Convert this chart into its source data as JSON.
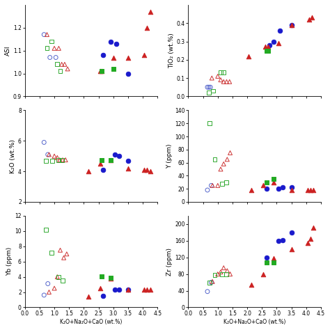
{
  "xlabel": "K₂O+Na₂O+CaO (wt.%)",
  "panels": [
    {
      "key": "ASI",
      "ylabel": "ASI",
      "ylim": [
        0.9,
        1.3
      ],
      "yticks": [
        0.9,
        1.0,
        1.1,
        1.2
      ],
      "xlim": [
        0.0,
        4.5
      ],
      "xticks": [
        0.0,
        0.5,
        1.0,
        1.5,
        2.0,
        2.5,
        3.0,
        3.5,
        4.0,
        4.5
      ]
    },
    {
      "key": "TiO2",
      "ylabel": "TiO₂ (wt.%)",
      "ylim": [
        0.0,
        0.5
      ],
      "yticks": [
        0.0,
        0.1,
        0.2,
        0.3,
        0.4
      ],
      "xlim": [
        0.0,
        4.5
      ],
      "xticks": [
        0.0,
        0.5,
        1.0,
        1.5,
        2.0,
        2.5,
        3.0,
        3.5,
        4.0,
        4.5
      ]
    },
    {
      "key": "K2O",
      "ylabel": "K₂O (wt.%)",
      "ylim": [
        2.0,
        8.0
      ],
      "yticks": [
        2,
        4,
        6,
        8
      ],
      "xlim": [
        0.0,
        4.5
      ],
      "xticks": [
        0.0,
        0.5,
        1.0,
        1.5,
        2.0,
        2.5,
        3.0,
        3.5,
        4.0,
        4.5
      ]
    },
    {
      "key": "Y",
      "ylabel": "Y (ppm)",
      "ylim": [
        0,
        140
      ],
      "yticks": [
        0,
        20,
        40,
        60,
        80,
        100,
        120,
        140
      ],
      "xlim": [
        0.0,
        4.5
      ],
      "xticks": [
        0.0,
        0.5,
        1.0,
        1.5,
        2.0,
        2.5,
        3.0,
        3.5,
        4.0,
        4.5
      ]
    },
    {
      "key": "Yb",
      "ylabel": "Yb (ppm)",
      "ylim": [
        0,
        12
      ],
      "yticks": [
        0,
        2,
        4,
        6,
        8,
        10,
        12
      ],
      "xlim": [
        0.0,
        4.5
      ],
      "xticks": [
        0.0,
        0.5,
        1.0,
        1.5,
        2.0,
        2.5,
        3.0,
        3.5,
        4.0,
        4.5
      ]
    },
    {
      "key": "Zr",
      "ylabel": "Zr (ppm)",
      "ylim": [
        0,
        220
      ],
      "yticks": [
        0,
        40,
        80,
        120,
        160,
        200
      ],
      "xlim": [
        0.0,
        4.5
      ],
      "xticks": [
        0.0,
        0.5,
        1.0,
        1.5,
        2.0,
        2.5,
        3.0,
        3.5,
        4.0,
        4.5
      ]
    }
  ],
  "data": {
    "ASI": {
      "open_circle": {
        "x": [
          0.65,
          0.85,
          1.05
        ],
        "y": [
          1.17,
          1.07,
          1.07
        ]
      },
      "open_triangle": {
        "x": [
          0.75,
          1.0,
          1.15,
          1.25,
          1.35,
          1.45
        ],
        "y": [
          1.17,
          1.11,
          1.11,
          1.04,
          1.04,
          1.02
        ]
      },
      "open_square": {
        "x": [
          0.75,
          0.9,
          1.1,
          1.2
        ],
        "y": [
          1.11,
          1.14,
          1.04,
          1.01
        ]
      },
      "filled_circle": {
        "x": [
          2.65,
          2.9,
          3.1,
          3.5
        ],
        "y": [
          1.08,
          1.14,
          1.13,
          1.0
        ]
      },
      "filled_triangle": {
        "x": [
          2.55,
          2.6,
          3.0,
          3.5,
          4.05,
          4.15,
          4.25
        ],
        "y": [
          1.01,
          1.01,
          1.07,
          1.07,
          1.08,
          1.2,
          1.27
        ]
      },
      "filled_square": {
        "x": [
          2.6,
          3.0
        ],
        "y": [
          1.01,
          1.02
        ]
      }
    },
    "TiO2": {
      "open_circle": {
        "x": [
          0.65,
          0.7,
          0.75
        ],
        "y": [
          0.05,
          0.05,
          0.05
        ]
      },
      "open_triangle": {
        "x": [
          0.8,
          1.0,
          1.1,
          1.2,
          1.3,
          1.4
        ],
        "y": [
          0.1,
          0.11,
          0.09,
          0.08,
          0.08,
          0.08
        ]
      },
      "open_square": {
        "x": [
          0.7,
          0.85,
          1.1,
          1.2
        ],
        "y": [
          0.02,
          0.03,
          0.13,
          0.13
        ]
      },
      "filled_circle": {
        "x": [
          2.75,
          2.9,
          3.1,
          3.5
        ],
        "y": [
          0.28,
          0.3,
          0.36,
          0.39
        ]
      },
      "filled_triangle": {
        "x": [
          2.05,
          2.6,
          2.7,
          3.05,
          3.5,
          4.1,
          4.2
        ],
        "y": [
          0.22,
          0.27,
          0.27,
          0.29,
          0.39,
          0.42,
          0.43
        ]
      },
      "filled_square": {
        "x": [
          2.65,
          2.7
        ],
        "y": [
          0.25,
          0.25
        ]
      }
    },
    "K2O": {
      "open_circle": {
        "x": [
          0.65,
          0.78
        ],
        "y": [
          5.9,
          5.1
        ]
      },
      "open_triangle": {
        "x": [
          0.82,
          1.0,
          1.1,
          1.18,
          1.28,
          1.38
        ],
        "y": [
          5.1,
          5.0,
          4.9,
          4.75,
          4.75,
          4.75
        ]
      },
      "open_square": {
        "x": [
          0.72,
          0.92,
          1.15,
          1.25
        ],
        "y": [
          4.7,
          4.7,
          4.75,
          4.75
        ]
      },
      "filled_circle": {
        "x": [
          2.65,
          3.05,
          3.2,
          3.5
        ],
        "y": [
          4.1,
          5.1,
          5.0,
          4.7
        ]
      },
      "filled_triangle": {
        "x": [
          2.15,
          2.55,
          2.9,
          3.5,
          4.05,
          4.15,
          4.25
        ],
        "y": [
          4.0,
          4.5,
          4.75,
          4.2,
          4.1,
          4.1,
          4.0
        ]
      },
      "filled_square": {
        "x": [
          2.6,
          2.9
        ],
        "y": [
          4.75,
          4.75
        ]
      }
    },
    "Y": {
      "open_circle": {
        "x": [
          0.65,
          0.78
        ],
        "y": [
          18,
          25
        ]
      },
      "open_triangle": {
        "x": [
          0.82,
          1.0,
          1.1,
          1.2,
          1.32,
          1.42
        ],
        "y": [
          25,
          25,
          50,
          58,
          65,
          75
        ]
      },
      "open_square": {
        "x": [
          0.72,
          0.9,
          1.15,
          1.28
        ],
        "y": [
          120,
          65,
          28,
          30
        ]
      },
      "filled_circle": {
        "x": [
          2.65,
          3.05,
          3.2,
          3.5
        ],
        "y": [
          20,
          20,
          22,
          22
        ]
      },
      "filled_triangle": {
        "x": [
          2.15,
          2.55,
          2.9,
          3.5,
          4.05,
          4.15,
          4.25
        ],
        "y": [
          18,
          25,
          30,
          18,
          18,
          18,
          18
        ]
      },
      "filled_square": {
        "x": [
          2.65,
          2.9
        ],
        "y": [
          30,
          35
        ]
      }
    },
    "Yb": {
      "open_circle": {
        "x": [
          0.65,
          0.78
        ],
        "y": [
          1.6,
          3.1
        ]
      },
      "open_triangle": {
        "x": [
          0.82,
          1.0,
          1.1,
          1.2,
          1.32,
          1.42
        ],
        "y": [
          2.0,
          2.5,
          4.0,
          7.5,
          6.5,
          7.0
        ]
      },
      "open_square": {
        "x": [
          0.72,
          0.9,
          1.15,
          1.28
        ],
        "y": [
          10.2,
          7.2,
          4.0,
          3.5
        ]
      },
      "filled_circle": {
        "x": [
          2.65,
          3.05,
          3.2,
          3.5
        ],
        "y": [
          1.5,
          2.3,
          2.3,
          2.3
        ]
      },
      "filled_triangle": {
        "x": [
          2.15,
          2.55,
          2.9,
          3.5,
          4.05,
          4.15,
          4.25
        ],
        "y": [
          1.4,
          2.5,
          3.8,
          2.3,
          2.3,
          2.3,
          2.3
        ]
      },
      "filled_square": {
        "x": [
          2.6,
          2.9
        ],
        "y": [
          4.1,
          3.9
        ]
      }
    },
    "Zr": {
      "open_circle": {
        "x": [
          0.65,
          0.78
        ],
        "y": [
          38,
          60
        ]
      },
      "open_triangle": {
        "x": [
          0.82,
          1.0,
          1.1,
          1.2,
          1.32,
          1.42
        ],
        "y": [
          62,
          80,
          85,
          95,
          88,
          80
        ]
      },
      "open_square": {
        "x": [
          0.72,
          0.9,
          1.15,
          1.28
        ],
        "y": [
          60,
          78,
          80,
          80
        ]
      },
      "filled_circle": {
        "x": [
          2.65,
          3.05,
          3.2,
          3.5
        ],
        "y": [
          120,
          160,
          162,
          180
        ]
      },
      "filled_triangle": {
        "x": [
          2.15,
          2.55,
          2.9,
          3.5,
          4.05,
          4.15,
          4.25
        ],
        "y": [
          55,
          80,
          118,
          140,
          155,
          165,
          192
        ]
      },
      "filled_square": {
        "x": [
          2.65,
          2.9
        ],
        "y": [
          108,
          108
        ]
      }
    }
  }
}
